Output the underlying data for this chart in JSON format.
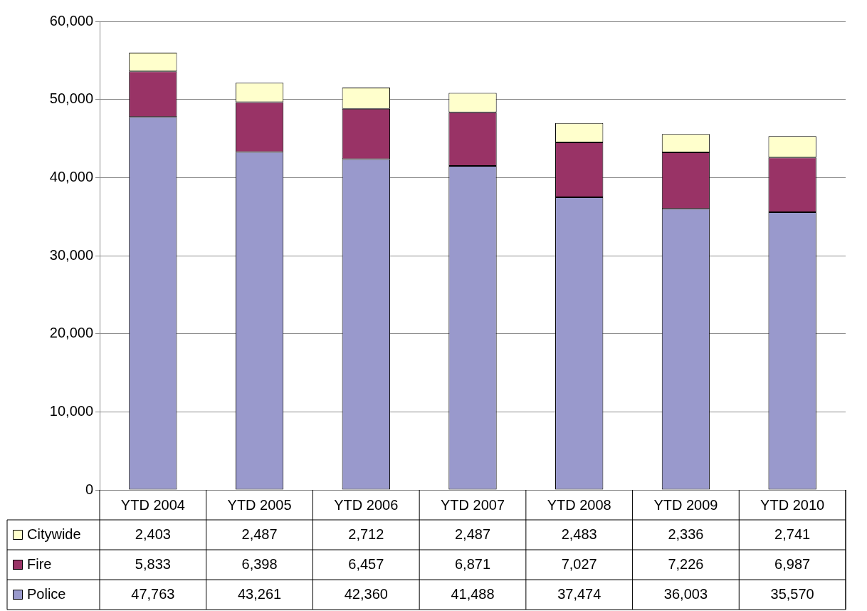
{
  "chart_data": {
    "type": "bar",
    "stacked": true,
    "categories": [
      "YTD 2004",
      "YTD 2005",
      "YTD 2006",
      "YTD 2007",
      "YTD 2008",
      "YTD 2009",
      "YTD 2010"
    ],
    "series": [
      {
        "name": "Police",
        "color": "#9999cc",
        "values": [
          47763,
          43261,
          42360,
          41488,
          37474,
          36003,
          35570
        ],
        "value_labels": [
          "47,763",
          "43,261",
          "42,360",
          "41,488",
          "37,474",
          "36,003",
          "35,570"
        ]
      },
      {
        "name": "Fire",
        "color": "#993366",
        "values": [
          5833,
          6398,
          6457,
          6871,
          7027,
          7226,
          6987
        ],
        "value_labels": [
          "5,833",
          "6,398",
          "6,457",
          "6,871",
          "7,027",
          "7,226",
          "6,987"
        ]
      },
      {
        "name": "Citywide",
        "color": "#ffffcc",
        "values": [
          2403,
          2487,
          2712,
          2487,
          2483,
          2336,
          2741
        ],
        "value_labels": [
          "2,403",
          "2,487",
          "2,712",
          "2,487",
          "2,483",
          "2,336",
          "2,741"
        ]
      }
    ],
    "ylim": [
      0,
      60000
    ],
    "yticks": [
      {
        "value": 0,
        "label": "0"
      },
      {
        "value": 10000,
        "label": "10,000"
      },
      {
        "value": 20000,
        "label": "20,000"
      },
      {
        "value": 30000,
        "label": "30,000"
      },
      {
        "value": 40000,
        "label": "40,000"
      },
      {
        "value": 50000,
        "label": "50,000"
      },
      {
        "value": 60000,
        "label": "60,000"
      }
    ],
    "grid": "y",
    "legend": "bottom left"
  }
}
